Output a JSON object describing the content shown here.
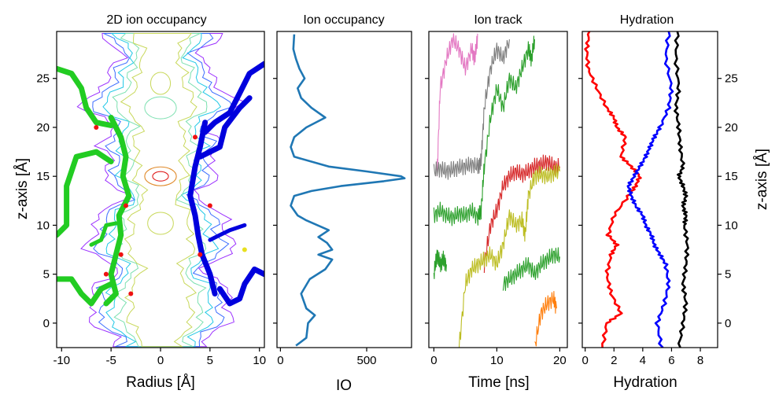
{
  "figure": {
    "y_axis_label_left": "z-axis [Å]",
    "y_axis_label_right": "z-axis [Å]"
  },
  "colors": {
    "axis": "#000000",
    "io_line": "#1f77b4",
    "hydration_red": "#ff0000",
    "hydration_blue": "#0000ff",
    "hydration_black": "#000000",
    "protein_left": "#22cc22",
    "protein_right": "#0000dd",
    "contour_levels": [
      "#9b30ff",
      "#3b6cff",
      "#22c8e6",
      "#7be0b0",
      "#c8d85a",
      "#e08a2a",
      "#e02020"
    ]
  },
  "chart_data": [
    {
      "type": "heatmap",
      "title": "2D ion occupancy",
      "xlabel": "Radius [Å]",
      "ylabel": "z-axis [Å]",
      "xlim": [
        -10.5,
        10.5
      ],
      "ylim": [
        -2.5,
        29.8
      ],
      "xticks": [
        -10,
        -5,
        0,
        5,
        10
      ],
      "yticks": [
        0,
        5,
        10,
        15,
        20,
        25
      ],
      "annotation": "contour map of ion occupancy overlaid on protein pore-lining residues (stick representation)"
    },
    {
      "type": "line",
      "title": "Ion occupancy",
      "xlabel": "IO",
      "xlim": [
        -20,
        760
      ],
      "ylim": [
        -2.5,
        29.8
      ],
      "xticks": [
        0,
        500
      ],
      "series": [
        {
          "points_z": [
            -2.3,
            -1.5,
            0,
            0.8,
            1.5,
            3,
            4.5,
            5.5,
            6.5,
            7,
            7.5,
            8.2,
            8.8,
            9.5,
            10.5,
            11,
            12,
            13,
            13.5,
            14,
            14.5,
            14.8,
            15,
            15.5,
            16,
            17,
            18,
            19,
            20,
            21,
            21.5,
            22,
            23,
            24,
            25,
            26,
            27,
            28,
            29.5
          ],
          "points_io": [
            90,
            150,
            160,
            200,
            150,
            120,
            170,
            260,
            300,
            220,
            300,
            270,
            220,
            280,
            150,
            100,
            60,
            80,
            180,
            350,
            600,
            720,
            700,
            500,
            280,
            80,
            60,
            80,
            150,
            260,
            220,
            180,
            120,
            100,
            140,
            110,
            90,
            75,
            80
          ]
        }
      ]
    },
    {
      "type": "line",
      "title": "Ion track",
      "xlabel": "Time [ns]",
      "xlim": [
        -0.8,
        21.2
      ],
      "ylim": [
        -2.5,
        29.8
      ],
      "xticks": [
        0,
        10,
        20
      ],
      "series": [
        {
          "color": "#e377c2",
          "x": [
            0.5,
            1,
            2,
            3,
            4,
            5,
            6,
            6.5,
            7
          ],
          "y": [
            15,
            24,
            27,
            29,
            28,
            26,
            28,
            27,
            29.5
          ]
        },
        {
          "color": "#7f7f7f",
          "x": [
            0,
            1,
            2,
            3,
            4,
            5,
            6,
            7,
            7.5,
            8,
            9,
            10,
            11,
            12
          ],
          "y": [
            15.5,
            15.8,
            15.5,
            15.7,
            15.9,
            16,
            16.2,
            16,
            16.5,
            22,
            26,
            28,
            27,
            29
          ]
        },
        {
          "color": "#2ca02c",
          "x": [
            0,
            1,
            2,
            3,
            4,
            5,
            6,
            7,
            7.5,
            8,
            9,
            10,
            11,
            12,
            13,
            14,
            15,
            15.5,
            16
          ],
          "y": [
            11,
            11.5,
            11,
            10.8,
            11.2,
            11,
            11.5,
            10.8,
            11.5,
            16,
            21,
            24,
            22,
            25,
            24,
            26,
            28,
            27,
            29
          ]
        },
        {
          "color": "#2ca02c",
          "x": [
            0,
            0.5,
            1,
            1.5,
            2
          ],
          "y": [
            5,
            7,
            6,
            6.5,
            6
          ]
        },
        {
          "color": "#2ca02c",
          "x": [
            11,
            12,
            13,
            14,
            15,
            16,
            17,
            18,
            19,
            20
          ],
          "y": [
            4,
            4.5,
            5,
            5.5,
            6,
            5,
            6,
            6.5,
            7,
            6.8
          ]
        },
        {
          "color": "#d62728",
          "x": [
            8,
            9,
            10,
            11,
            12,
            13,
            14,
            15,
            16,
            17,
            18,
            19,
            20
          ],
          "y": [
            6,
            10,
            11.5,
            14,
            15,
            15.5,
            15.2,
            15.5,
            16,
            16.2,
            16.5,
            16,
            16
          ]
        },
        {
          "color": "#bcbd22",
          "x": [
            4,
            5,
            6,
            7,
            8,
            9,
            10,
            11,
            12,
            13,
            14,
            14.5,
            15,
            16,
            17,
            18,
            19,
            20
          ],
          "y": [
            -2.5,
            4,
            5.5,
            6,
            6.5,
            7,
            6,
            8,
            11,
            10,
            10.5,
            9,
            13,
            15,
            15.2,
            15,
            15.3,
            15.5
          ]
        },
        {
          "color": "#ff7f0e",
          "x": [
            16,
            17,
            18,
            19,
            19.5
          ],
          "y": [
            -2.5,
            1,
            2,
            2.5,
            1.5
          ]
        }
      ]
    },
    {
      "type": "line",
      "title": "Hydration",
      "xlabel": "Hydration",
      "xlim": [
        -0.2,
        9.2
      ],
      "ylim": [
        -2.5,
        29.8
      ],
      "xticks": [
        0,
        2,
        4,
        6,
        8
      ],
      "yticks_right": [
        0,
        5,
        10,
        15,
        20,
        25
      ],
      "series": [
        {
          "color": "#ff0000",
          "x": [
            1.2,
            1.5,
            2.5,
            1.8,
            1.5,
            1.8,
            2.2,
            1.6,
            2,
            3,
            3.5,
            3.8,
            3.2,
            2.5,
            2.8,
            2.2,
            2,
            1.5,
            0.8,
            0.2,
            0.1,
            0.3
          ],
          "y": [
            -2.5,
            0,
            1,
            3,
            5,
            7,
            8,
            9,
            11,
            13,
            14,
            15,
            16,
            17,
            19,
            20,
            21,
            22,
            24,
            26,
            28,
            29.8
          ]
        },
        {
          "color": "#0000ff",
          "x": [
            5.3,
            5.0,
            5.5,
            5.8,
            5.6,
            5.2,
            4.8,
            4.6,
            4.2,
            4.0,
            3.5,
            3.2,
            3.0,
            3.4,
            3.8,
            4.2,
            4.5,
            4.8,
            5.2,
            5.8,
            6.0,
            5.6,
            5.8
          ],
          "y": [
            -2.5,
            0,
            2,
            4,
            6,
            7,
            8,
            9,
            10,
            11,
            12,
            13,
            14,
            15,
            16,
            17,
            18,
            19,
            20,
            22,
            24,
            27,
            29.8
          ]
        },
        {
          "color": "#000000",
          "x": [
            6.5,
            6.8,
            7.0,
            6.8,
            7.0,
            7.1,
            6.9,
            7.0,
            6.8,
            7.0,
            6.8,
            6.5,
            6.8,
            6.6,
            6.5,
            6.3,
            6.5,
            6.3,
            6.4
          ],
          "y": [
            -2.5,
            0,
            2,
            4,
            6,
            8,
            10,
            11,
            12,
            13,
            14,
            15,
            16,
            18,
            20,
            22,
            24,
            27,
            29.8
          ]
        }
      ]
    }
  ]
}
